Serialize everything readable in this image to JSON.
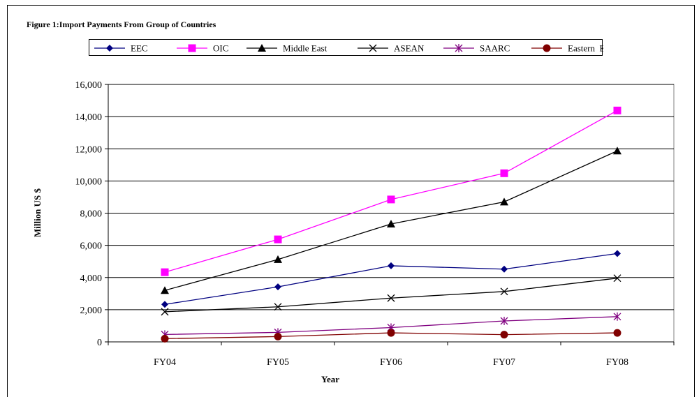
{
  "chart_data": {
    "type": "line",
    "title": "Figure 1:Import Payments From Group of Countries",
    "xlabel": "Year",
    "ylabel": "Million US $",
    "categories": [
      "FY04",
      "FY05",
      "FY06",
      "FY07",
      "FY08"
    ],
    "ylim": [
      0,
      16000
    ],
    "yticks": [
      0,
      2000,
      4000,
      6000,
      8000,
      10000,
      12000,
      14000,
      16000
    ],
    "ytick_labels": [
      "0",
      "2,000",
      "4,000",
      "6,000",
      "8,000",
      "10,000",
      "12,000",
      "14,000",
      "16,000"
    ],
    "grid": "horizontal",
    "legend_position": "top",
    "series": [
      {
        "name": "EEC",
        "color": "#000080",
        "marker": "diamond",
        "values": [
          2330,
          3420,
          4730,
          4520,
          5490
        ]
      },
      {
        "name": "OIC",
        "color": "#ff00ff",
        "marker": "square",
        "values": [
          4330,
          6370,
          8850,
          10480,
          14380
        ]
      },
      {
        "name": "Middle East",
        "color": "#000000",
        "marker": "triangle",
        "values": [
          3200,
          5120,
          7330,
          8700,
          11870
        ]
      },
      {
        "name": "ASEAN",
        "color": "#000000",
        "marker": "x",
        "values": [
          1870,
          2180,
          2720,
          3130,
          3960
        ]
      },
      {
        "name": "SAARC",
        "color": "#800080",
        "marker": "star",
        "values": [
          460,
          590,
          890,
          1300,
          1570
        ]
      },
      {
        "name": "Eastern  Europe",
        "color": "#800000",
        "marker": "circle",
        "values": [
          200,
          330,
          560,
          450,
          560
        ]
      }
    ]
  }
}
